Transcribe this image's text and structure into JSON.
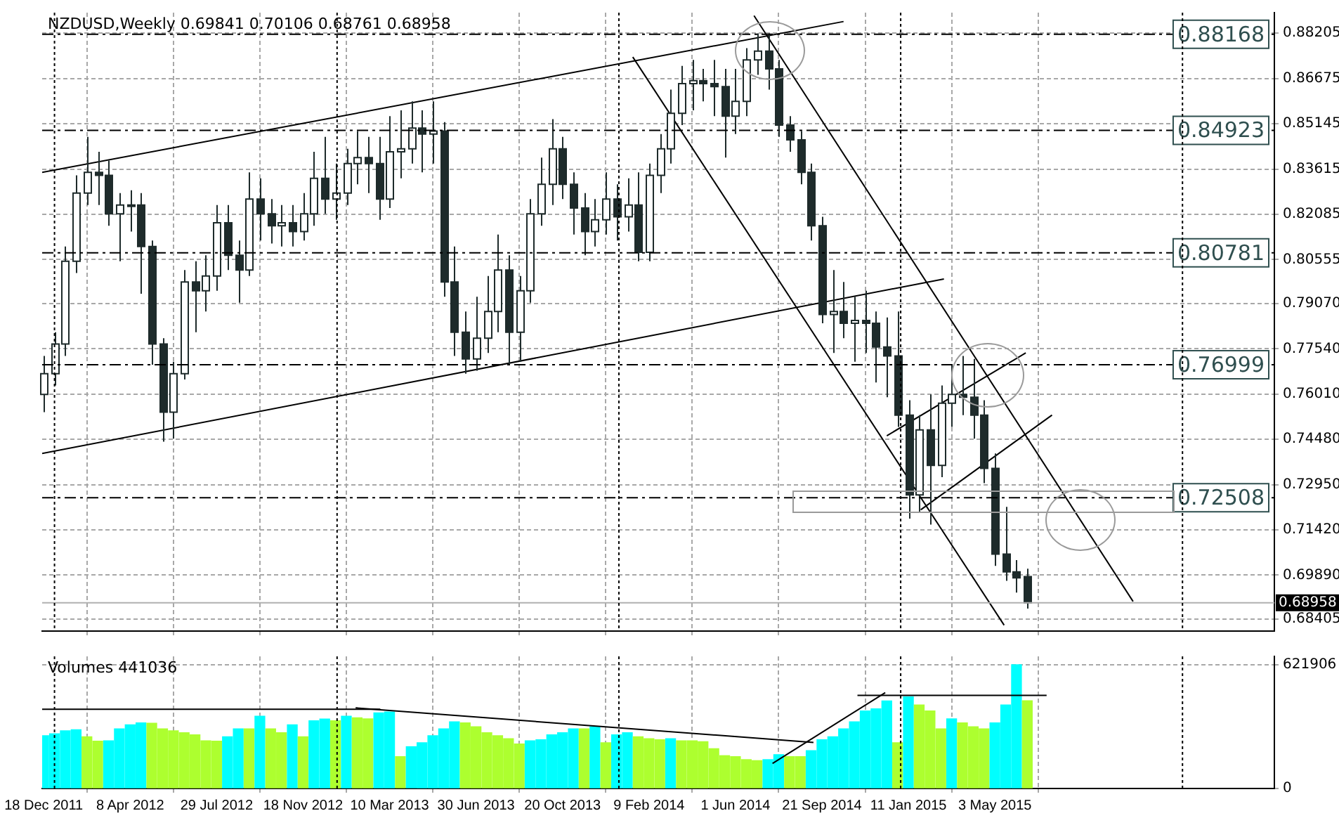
{
  "chart_data": [
    {
      "type": "candlestick",
      "title": "NZDUSD,Weekly 0.69841 0.70106 0.68761 0.68958",
      "color": "#1e2b2b",
      "colors": [
        "#ffffff",
        "#ffffff",
        "#ffffff",
        "#ffffff",
        "#ffffff",
        "#1e2b2b",
        "#1e2b2b",
        "#ffffff",
        "#ffffff",
        "#1e2b2b",
        "#1e2b2b",
        "#1e2b2b",
        "#ffffff",
        "#ffffff",
        "#1e2b2b",
        "#ffffff",
        "#ffffff",
        "#1e2b2b",
        "#1e2b2b",
        "#ffffff",
        "#1e2b2b",
        "#1e2b2b",
        "#ffffff",
        "#1e2b2b",
        "#ffffff",
        "#ffffff",
        "#1e2b2b",
        "#ffffff",
        "#ffffff",
        "#ffffff",
        "#1e2b2b",
        "#1e2b2b",
        "#ffffff",
        "#ffffff",
        "#ffffff",
        "#1e2b2b",
        "#ffffff",
        "#1e2b2b",
        "#1e2b2b",
        "#1e2b2b",
        "#ffffff",
        "#ffffff",
        "#ffffff",
        "#1e2b2b",
        "#ffffff",
        "#ffffff",
        "#ffffff",
        "#ffffff",
        "#1e2b2b",
        "#1e2b2b",
        "#1e2b2b",
        "#ffffff",
        "#ffffff",
        "#1e2b2b",
        "#ffffff",
        "#1e2b2b",
        "#ffffff",
        "#ffffff",
        "#ffffff",
        "#ffffff",
        "#ffffff",
        "#1e2b2b",
        "#1e2b2b",
        "#1e2b2b",
        "#ffffff",
        "#ffffff",
        "#ffffff",
        "#1e2b2b",
        "#1e2b2b",
        "#1e2b2b",
        "#1e2b2b",
        "#1e2b2b",
        "#1e2b2b",
        "#ffffff",
        "#1e2b2b",
        "#ffffff",
        "#1e2b2b",
        "#1e2b2b",
        "#1e2b2b",
        "#1e2b2b",
        "#1e2b2b",
        "#ffffff",
        "#1e2b2b",
        "#ffffff",
        "#ffffff",
        "#1e2b2b",
        "#1e2b2b",
        "#1e2b2b",
        "#1e2b2b",
        "#1e2b2b",
        "#1e2b2b",
        "#1e2b2b"
      ],
      "x": [
        "2011-12-18",
        "2012-01-01",
        "2012-01-15",
        "2012-01-29",
        "2012-02-12",
        "2012-02-26",
        "2012-03-11",
        "2012-03-25",
        "2012-04-08",
        "2012-04-22",
        "2012-05-06",
        "2012-05-20",
        "2012-06-03",
        "2012-06-17",
        "2012-07-01",
        "2012-07-15",
        "2012-07-29",
        "2012-08-12",
        "2012-08-26",
        "2012-09-09",
        "2012-09-23",
        "2012-10-07",
        "2012-10-21",
        "2012-11-04",
        "2012-11-18",
        "2012-12-02",
        "2012-12-16",
        "2012-12-30",
        "2013-01-13",
        "2013-01-27",
        "2013-02-10",
        "2013-02-24",
        "2013-03-10",
        "2013-03-24",
        "2013-04-07",
        "2013-04-21",
        "2013-05-05",
        "2013-05-19",
        "2013-06-02",
        "2013-06-16",
        "2013-06-30",
        "2013-07-14",
        "2013-07-28",
        "2013-08-11",
        "2013-08-25",
        "2013-09-08",
        "2013-09-22",
        "2013-10-06",
        "2013-10-20",
        "2013-11-03",
        "2013-11-17",
        "2013-12-01",
        "2013-12-15",
        "2013-12-29",
        "2014-01-12",
        "2014-01-26",
        "2014-02-09",
        "2014-02-23",
        "2014-03-09",
        "2014-03-23",
        "2014-04-06",
        "2014-04-20",
        "2014-05-04",
        "2014-05-18",
        "2014-06-01",
        "2014-06-15",
        "2014-06-29",
        "2014-07-13",
        "2014-07-27",
        "2014-08-10",
        "2014-08-24",
        "2014-09-07",
        "2014-09-21",
        "2014-10-05",
        "2014-10-19",
        "2014-11-02",
        "2014-11-16",
        "2014-11-30",
        "2014-12-14",
        "2014-12-28",
        "2015-01-11",
        "2015-01-25",
        "2015-02-08",
        "2015-02-22",
        "2015-03-08",
        "2015-03-22",
        "2015-04-05",
        "2015-04-19",
        "2015-05-03",
        "2015-05-17",
        "2015-05-31",
        "2015-06-14"
      ],
      "ohlc": [
        [
          0.76,
          0.773,
          0.754,
          0.767
        ],
        [
          0.767,
          0.781,
          0.763,
          0.777
        ],
        [
          0.777,
          0.81,
          0.773,
          0.805
        ],
        [
          0.805,
          0.834,
          0.801,
          0.828
        ],
        [
          0.828,
          0.847,
          0.824,
          0.835
        ],
        [
          0.835,
          0.842,
          0.824,
          0.834
        ],
        [
          0.834,
          0.839,
          0.817,
          0.821
        ],
        [
          0.821,
          0.828,
          0.805,
          0.824
        ],
        [
          0.824,
          0.829,
          0.815,
          0.824
        ],
        [
          0.824,
          0.828,
          0.794,
          0.81
        ],
        [
          0.81,
          0.812,
          0.77,
          0.777
        ],
        [
          0.777,
          0.779,
          0.744,
          0.754
        ],
        [
          0.754,
          0.771,
          0.745,
          0.767
        ],
        [
          0.767,
          0.802,
          0.765,
          0.798
        ],
        [
          0.798,
          0.805,
          0.781,
          0.795
        ],
        [
          0.795,
          0.807,
          0.788,
          0.8
        ],
        [
          0.8,
          0.824,
          0.795,
          0.818
        ],
        [
          0.818,
          0.824,
          0.802,
          0.807
        ],
        [
          0.807,
          0.812,
          0.791,
          0.802
        ],
        [
          0.802,
          0.835,
          0.8,
          0.826
        ],
        [
          0.826,
          0.833,
          0.812,
          0.821
        ],
        [
          0.821,
          0.826,
          0.811,
          0.817
        ],
        [
          0.817,
          0.824,
          0.81,
          0.818
        ],
        [
          0.818,
          0.824,
          0.81,
          0.815
        ],
        [
          0.815,
          0.828,
          0.812,
          0.821
        ],
        [
          0.821,
          0.842,
          0.817,
          0.833
        ],
        [
          0.833,
          0.847,
          0.821,
          0.826
        ],
        [
          0.826,
          0.838,
          0.819,
          0.828
        ],
        [
          0.828,
          0.843,
          0.824,
          0.838
        ],
        [
          0.838,
          0.849,
          0.831,
          0.84
        ],
        [
          0.84,
          0.847,
          0.828,
          0.838
        ],
        [
          0.838,
          0.847,
          0.819,
          0.826
        ],
        [
          0.826,
          0.854,
          0.823,
          0.842
        ],
        [
          0.842,
          0.856,
          0.833,
          0.843
        ],
        [
          0.843,
          0.859,
          0.838,
          0.85
        ],
        [
          0.85,
          0.856,
          0.835,
          0.848
        ],
        [
          0.848,
          0.859,
          0.838,
          0.849
        ],
        [
          0.849,
          0.852,
          0.793,
          0.798
        ],
        [
          0.798,
          0.81,
          0.773,
          0.781
        ],
        [
          0.781,
          0.788,
          0.767,
          0.772
        ],
        [
          0.772,
          0.793,
          0.768,
          0.779
        ],
        [
          0.779,
          0.8,
          0.774,
          0.788
        ],
        [
          0.788,
          0.814,
          0.781,
          0.802
        ],
        [
          0.802,
          0.807,
          0.77,
          0.781
        ],
        [
          0.781,
          0.8,
          0.771,
          0.795
        ],
        [
          0.795,
          0.826,
          0.791,
          0.821
        ],
        [
          0.821,
          0.84,
          0.817,
          0.831
        ],
        [
          0.831,
          0.853,
          0.824,
          0.843
        ],
        [
          0.843,
          0.847,
          0.826,
          0.831
        ],
        [
          0.831,
          0.835,
          0.814,
          0.823
        ],
        [
          0.823,
          0.828,
          0.807,
          0.815
        ],
        [
          0.815,
          0.826,
          0.81,
          0.819
        ],
        [
          0.819,
          0.835,
          0.814,
          0.826
        ],
        [
          0.826,
          0.831,
          0.812,
          0.82
        ],
        [
          0.82,
          0.833,
          0.815,
          0.824
        ],
        [
          0.824,
          0.835,
          0.805,
          0.808
        ],
        [
          0.808,
          0.838,
          0.805,
          0.834
        ],
        [
          0.834,
          0.848,
          0.828,
          0.843
        ],
        [
          0.843,
          0.863,
          0.838,
          0.855
        ],
        [
          0.855,
          0.871,
          0.851,
          0.865
        ],
        [
          0.865,
          0.873,
          0.856,
          0.866
        ],
        [
          0.866,
          0.87,
          0.859,
          0.865
        ],
        [
          0.865,
          0.873,
          0.854,
          0.864
        ],
        [
          0.864,
          0.87,
          0.84,
          0.854
        ],
        [
          0.854,
          0.87,
          0.848,
          0.859
        ],
        [
          0.859,
          0.877,
          0.854,
          0.873
        ],
        [
          0.873,
          0.882,
          0.868,
          0.876
        ],
        [
          0.876,
          0.882,
          0.863,
          0.87
        ],
        [
          0.87,
          0.873,
          0.847,
          0.851
        ],
        [
          0.851,
          0.854,
          0.842,
          0.846
        ],
        [
          0.846,
          0.849,
          0.831,
          0.835
        ],
        [
          0.835,
          0.838,
          0.812,
          0.817
        ],
        [
          0.817,
          0.82,
          0.784,
          0.787
        ],
        [
          0.787,
          0.802,
          0.774,
          0.788
        ],
        [
          0.788,
          0.798,
          0.779,
          0.784
        ],
        [
          0.784,
          0.793,
          0.771,
          0.785
        ],
        [
          0.785,
          0.795,
          0.774,
          0.784
        ],
        [
          0.784,
          0.788,
          0.764,
          0.776
        ],
        [
          0.776,
          0.786,
          0.759,
          0.773
        ],
        [
          0.773,
          0.788,
          0.749,
          0.753
        ],
        [
          0.753,
          0.758,
          0.718,
          0.726
        ],
        [
          0.726,
          0.753,
          0.72,
          0.748
        ],
        [
          0.748,
          0.76,
          0.716,
          0.736
        ],
        [
          0.736,
          0.763,
          0.732,
          0.757
        ],
        [
          0.757,
          0.77,
          0.749,
          0.76
        ],
        [
          0.76,
          0.773,
          0.753,
          0.759
        ],
        [
          0.759,
          0.772,
          0.745,
          0.753
        ],
        [
          0.753,
          0.758,
          0.73,
          0.735
        ],
        [
          0.735,
          0.74,
          0.702,
          0.706
        ],
        [
          0.706,
          0.722,
          0.697,
          0.7
        ],
        [
          0.7,
          0.704,
          0.693,
          0.698
        ],
        [
          0.69841,
          0.70106,
          0.68761,
          0.68958
        ]
      ],
      "series": [
        {
          "type": "line",
          "color": "#000000",
          "x": [
            "2011-12-16",
            "2014-10-19"
          ],
          "values": [
            0.835,
            0.886
          ]
        },
        {
          "type": "line",
          "color": "#000000",
          "x": [
            "2011-12-16",
            "2015-02-26"
          ],
          "values": [
            0.74,
            0.799
          ]
        },
        {
          "type": "line",
          "color": "#000000",
          "x": [
            "2014-06-25",
            "2015-10-29"
          ],
          "values": [
            0.888,
            0.69
          ]
        },
        {
          "type": "line",
          "color": "#000000",
          "x": [
            "2014-01-19",
            "2015-05-15"
          ],
          "values": [
            0.874,
            0.682
          ]
        },
        {
          "type": "line",
          "color": "#000000",
          "x": [
            "2014-12-14",
            "2015-06-12"
          ],
          "values": [
            0.746,
            0.774
          ]
        },
        {
          "type": "line",
          "color": "#000000",
          "x": [
            "2015-01-27",
            "2015-07-16"
          ],
          "values": [
            0.721,
            0.753
          ]
        }
      ],
      "xlim": [
        "2011-12-16",
        "2016-04-29"
      ],
      "xticks": [
        {
          "value": "2011-12-18",
          "label": null
        },
        {
          "value": "2012-04-08",
          "label": null
        },
        {
          "value": "2012-07-29",
          "label": null
        },
        {
          "value": "2012-11-18",
          "label": null
        },
        {
          "value": "2013-03-10",
          "label": null
        },
        {
          "value": "2013-06-30",
          "label": null
        },
        {
          "value": "2013-10-20",
          "label": null
        },
        {
          "value": "2014-02-09",
          "label": null
        },
        {
          "value": "2014-06-01",
          "label": null
        },
        {
          "value": "2014-09-21",
          "label": null
        },
        {
          "value": "2015-01-11",
          "label": null
        },
        {
          "value": "2015-05-03",
          "label": null
        }
      ],
      "ylim": [
        0.68,
        0.889
      ],
      "yticks": [
        0.88205,
        0.86675,
        0.85145,
        0.83615,
        0.82085,
        0.80555,
        {
          "value": 0.7907,
          "label": "0.79070"
        },
        {
          "value": 0.7754,
          "label": "0.77540"
        },
        {
          "value": 0.7601,
          "label": "0.76010"
        },
        {
          "value": 0.7448,
          "label": "0.74480"
        },
        {
          "value": 0.7295,
          "label": "0.72950"
        },
        {
          "value": 0.7142,
          "label": "0.71420"
        },
        {
          "value": 0.6989,
          "label": "0.69890"
        },
        0.68405
      ],
      "ref_lines": [
        {
          "axis": "y",
          "value": 0.88168,
          "label": "0.88168",
          "color": "#000000",
          "line_style": "dashed"
        },
        {
          "axis": "y",
          "value": 0.84923,
          "label": "0.84923",
          "color": "#000000",
          "line_style": "dashed"
        },
        {
          "axis": "y",
          "value": 0.80781,
          "label": "0.80781",
          "color": "#000000",
          "line_style": "dashed"
        },
        {
          "axis": "y",
          "value": 0.76999,
          "label": "0.76999",
          "color": "#000000",
          "line_style": "dashed"
        },
        {
          "axis": "y",
          "value": 0.72508,
          "label": "0.72508",
          "color": "#000000",
          "line_style": "dashed"
        },
        {
          "axis": "y",
          "value": 0.68958,
          "label": "0.68958",
          "color": "#b0b0b0",
          "line_style": "solid"
        },
        {
          "axis": "x",
          "value": "2012-01-01",
          "color": "#000000",
          "line_style": "dotted"
        },
        {
          "axis": "x",
          "value": "2013-01-01",
          "color": "#000000",
          "line_style": "dotted"
        },
        {
          "axis": "x",
          "value": "2014-01-01",
          "color": "#000000",
          "line_style": "dotted"
        },
        {
          "axis": "x",
          "value": "2015-01-01",
          "color": "#000000",
          "line_style": "dotted"
        },
        {
          "axis": "x",
          "value": "2016-01-01",
          "color": "#000000",
          "line_style": "dotted"
        }
      ],
      "grid": true,
      "tick_labels": "y"
    },
    {
      "type": "bar",
      "title": "Volumes 441036",
      "x": [
        "2011-12-18",
        "2012-01-01",
        "2012-01-15",
        "2012-01-29",
        "2012-02-12",
        "2012-02-26",
        "2012-03-11",
        "2012-03-25",
        "2012-04-08",
        "2012-04-22",
        "2012-05-06",
        "2012-05-20",
        "2012-06-03",
        "2012-06-17",
        "2012-07-01",
        "2012-07-15",
        "2012-07-29",
        "2012-08-12",
        "2012-08-26",
        "2012-09-09",
        "2012-09-23",
        "2012-10-07",
        "2012-10-21",
        "2012-11-04",
        "2012-11-18",
        "2012-12-02",
        "2012-12-16",
        "2012-12-30",
        "2013-01-13",
        "2013-01-27",
        "2013-02-10",
        "2013-02-24",
        "2013-03-10",
        "2013-03-24",
        "2013-04-07",
        "2013-04-21",
        "2013-05-05",
        "2013-05-19",
        "2013-06-02",
        "2013-06-16",
        "2013-06-30",
        "2013-07-14",
        "2013-07-28",
        "2013-08-11",
        "2013-08-25",
        "2013-09-08",
        "2013-09-22",
        "2013-10-06",
        "2013-10-20",
        "2013-11-03",
        "2013-11-17",
        "2013-12-01",
        "2013-12-15",
        "2013-12-29",
        "2014-01-12",
        "2014-01-26",
        "2014-02-09",
        "2014-02-23",
        "2014-03-09",
        "2014-03-23",
        "2014-04-06",
        "2014-04-20",
        "2014-05-04",
        "2014-05-18",
        "2014-06-01",
        "2014-06-15",
        "2014-06-29",
        "2014-07-13",
        "2014-07-27",
        "2014-08-10",
        "2014-08-24",
        "2014-09-07",
        "2014-09-21",
        "2014-10-05",
        "2014-10-19",
        "2014-11-02",
        "2014-11-16",
        "2014-11-30",
        "2014-12-14",
        "2014-12-28",
        "2015-01-11",
        "2015-01-25",
        "2015-02-08",
        "2015-02-22",
        "2015-03-08",
        "2015-03-22",
        "2015-04-05",
        "2015-04-19",
        "2015-05-03",
        "2015-05-17",
        "2015-05-31",
        "2015-06-14"
      ],
      "values": [
        265000,
        275000,
        290000,
        295000,
        260000,
        238000,
        240000,
        300000,
        320000,
        330000,
        328000,
        300000,
        290000,
        280000,
        270000,
        240000,
        238000,
        260000,
        300000,
        300000,
        363000,
        300000,
        280000,
        320000,
        260000,
        340000,
        349000,
        340000,
        363000,
        355000,
        350000,
        380000,
        384000,
        160000,
        210000,
        230000,
        265000,
        300000,
        335000,
        330000,
        310000,
        280000,
        265000,
        250000,
        224000,
        240000,
        245000,
        270000,
        280000,
        300000,
        300000,
        310000,
        230000,
        270000,
        280000,
        260000,
        250000,
        245000,
        250000,
        240000,
        240000,
        235000,
        200000,
        165000,
        160000,
        145000,
        140000,
        145000,
        170000,
        160000,
        160000,
        190000,
        245000,
        260000,
        300000,
        335000,
        390000,
        400000,
        440000,
        230000,
        460000,
        420000,
        390000,
        300000,
        350000,
        330000,
        310000,
        300000,
        330000,
        420000,
        621906,
        441036
      ],
      "colors": [
        "#00ffff",
        "#00ffff",
        "#00ffff",
        "#00ffff",
        "#adff2f",
        "#adff2f",
        "#00ffff",
        "#00ffff",
        "#00ffff",
        "#00ffff",
        "#adff2f",
        "#adff2f",
        "#adff2f",
        "#adff2f",
        "#adff2f",
        "#adff2f",
        "#adff2f",
        "#00ffff",
        "#00ffff",
        "#adff2f",
        "#00ffff",
        "#adff2f",
        "#adff2f",
        "#00ffff",
        "#adff2f",
        "#00ffff",
        "#00ffff",
        "#adff2f",
        "#00ffff",
        "#adff2f",
        "#adff2f",
        "#00ffff",
        "#00ffff",
        "#adff2f",
        "#00ffff",
        "#00ffff",
        "#00ffff",
        "#00ffff",
        "#00ffff",
        "#adff2f",
        "#adff2f",
        "#adff2f",
        "#adff2f",
        "#adff2f",
        "#adff2f",
        "#00ffff",
        "#00ffff",
        "#00ffff",
        "#00ffff",
        "#00ffff",
        "#adff2f",
        "#00ffff",
        "#adff2f",
        "#00ffff",
        "#00ffff",
        "#adff2f",
        "#adff2f",
        "#adff2f",
        "#00ffff",
        "#adff2f",
        "#adff2f",
        "#adff2f",
        "#adff2f",
        "#adff2f",
        "#adff2f",
        "#adff2f",
        "#adff2f",
        "#00ffff",
        "#00ffff",
        "#adff2f",
        "#adff2f",
        "#00ffff",
        "#00ffff",
        "#00ffff",
        "#00ffff",
        "#00ffff",
        "#00ffff",
        "#00ffff",
        "#00ffff",
        "#adff2f",
        "#00ffff",
        "#adff2f",
        "#adff2f",
        "#adff2f",
        "#00ffff",
        "#adff2f",
        "#adff2f",
        "#adff2f",
        "#00ffff",
        "#00ffff",
        "#00ffff",
        "#adff2f"
      ],
      "series": [
        {
          "type": "line",
          "color": "#000000",
          "x": [
            "2011-12-16",
            "2013-02-26"
          ],
          "values": [
            398000,
            398000
          ]
        },
        {
          "type": "line",
          "color": "#000000",
          "x": [
            "2013-01-25",
            "2014-09-10"
          ],
          "values": [
            405000,
            231000
          ]
        },
        {
          "type": "line",
          "color": "#000000",
          "x": [
            "2014-07-19",
            "2014-12-12"
          ],
          "values": [
            126000,
            482000
          ]
        },
        {
          "type": "line",
          "color": "#000000",
          "x": [
            "2014-11-06",
            "2015-07-09"
          ],
          "values": [
            468000,
            468000
          ]
        }
      ],
      "xlim": [
        "2011-12-16",
        "2016-04-29"
      ],
      "xticks": [
        {
          "value": "2011-12-18",
          "label": "18 Dec 2011"
        },
        {
          "value": "2012-04-08",
          "label": "8 Apr 2012"
        },
        {
          "value": "2012-07-29",
          "label": "29 Jul 2012"
        },
        {
          "value": "2012-11-18",
          "label": "18 Nov 2012"
        },
        {
          "value": "2013-03-10",
          "label": "10 Mar 2013"
        },
        {
          "value": "2013-06-30",
          "label": "30 Jun 2013"
        },
        {
          "value": "2013-10-20",
          "label": "20 Oct 2013"
        },
        {
          "value": "2014-02-09",
          "label": "9 Feb 2014"
        },
        {
          "value": "2014-06-01",
          "label": "1 Jun 2014"
        },
        {
          "value": "2014-09-21",
          "label": "21 Sep 2014"
        },
        {
          "value": "2015-01-11",
          "label": "11 Jan 2015"
        },
        {
          "value": "2015-05-03",
          "label": "3 May 2015"
        }
      ],
      "ylim": [
        0,
        664000
      ],
      "yticks": [
        0,
        621906
      ],
      "ref_lines": [
        {
          "axis": "x",
          "value": "2012-01-01",
          "color": "#000000",
          "line_style": "dotted"
        },
        {
          "axis": "x",
          "value": "2013-01-01",
          "color": "#000000",
          "line_style": "dotted"
        },
        {
          "axis": "x",
          "value": "2014-01-01",
          "color": "#000000",
          "line_style": "dotted"
        },
        {
          "axis": "x",
          "value": "2015-01-01",
          "color": "#000000",
          "line_style": "dotted"
        },
        {
          "axis": "x",
          "value": "2016-01-01",
          "color": "#000000",
          "line_style": "dotted"
        }
      ],
      "grid": true
    }
  ]
}
